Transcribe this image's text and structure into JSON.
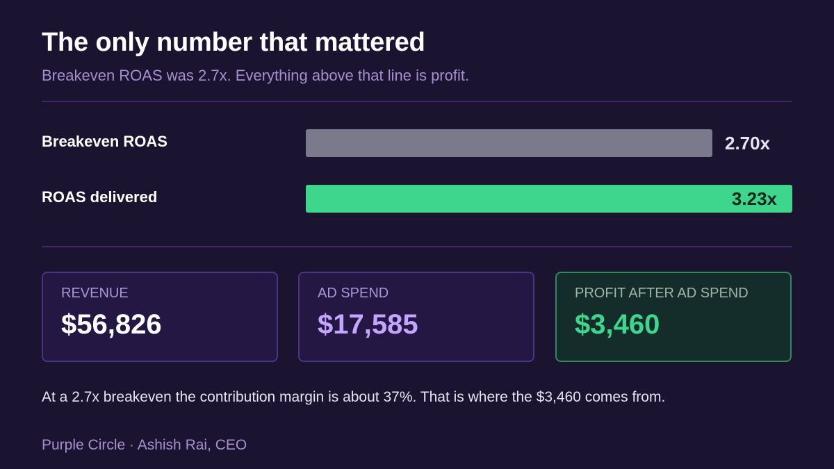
{
  "header": {
    "title": "The only number that mattered",
    "subtitle": "Breakeven ROAS was 2.7x. Everything above that line is profit."
  },
  "chart_data": {
    "type": "bar",
    "orientation": "horizontal",
    "categories": [
      "Breakeven ROAS",
      "ROAS delivered"
    ],
    "values": [
      2.7,
      3.23
    ],
    "value_labels": [
      "2.70x",
      "3.23x"
    ],
    "colors": [
      "#7b7a8c",
      "#3dd68c"
    ],
    "xlim": [
      0,
      3.23
    ],
    "grid": false
  },
  "metrics": [
    {
      "label": "REVENUE",
      "value": "$56,826",
      "color": "#ffffff"
    },
    {
      "label": "AD SPEND",
      "value": "$17,585",
      "color": "#c4a6ff"
    },
    {
      "label": "PROFIT AFTER AD SPEND",
      "value": "$3,460",
      "color": "#3dd68c"
    }
  ],
  "footnote": "At a 2.7x breakeven the contribution margin is about 37%. That is where the $3,460 comes from.",
  "credit": "Purple Circle · Ashish Rai, CEO"
}
